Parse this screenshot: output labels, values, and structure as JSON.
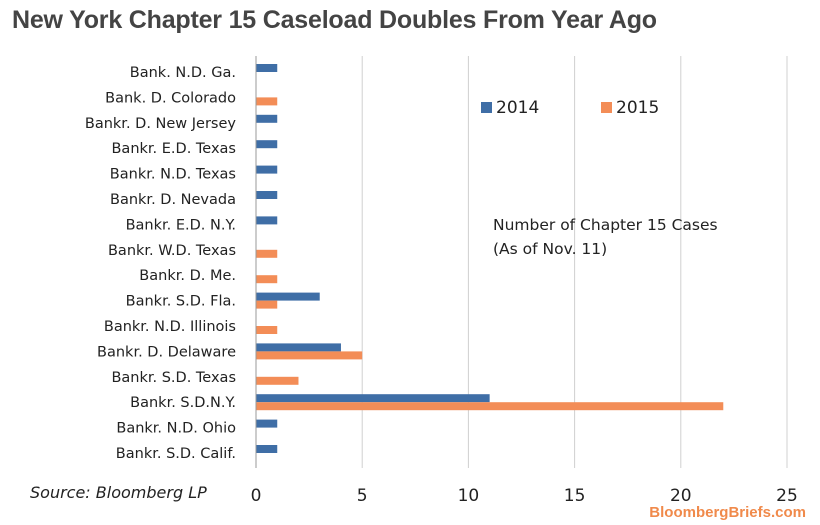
{
  "header": {
    "title": "New York Chapter 15 Caseload Doubles From Year Ago"
  },
  "footer": {
    "source": "Source: Bloomberg LP",
    "brand": "BloombergBriefs.com"
  },
  "chart_data": {
    "type": "bar",
    "orientation": "horizontal",
    "title": "New York Chapter 15 Caseload Doubles From Year Ago",
    "categories": [
      "Bank. N.D. Ga.",
      "Bank. D. Colorado",
      "Bankr. D. New Jersey",
      "Bankr. E.D. Texas",
      "Bankr. N.D. Texas",
      "Bankr. D. Nevada",
      "Bankr. E.D. N.Y.",
      "Bankr. W.D. Texas",
      "Bankr. D. Me.",
      "Bankr. S.D. Fla.",
      "Bankr. N.D. Illinois",
      "Bankr. D. Delaware",
      "Bankr. S.D. Texas",
      "Bankr. S.D.N.Y.",
      "Bankr. N.D. Ohio",
      "Bankr. S.D. Calif."
    ],
    "series": [
      {
        "name": "2014",
        "color": "#3f6ea6",
        "values": [
          1,
          0,
          1,
          1,
          1,
          1,
          1,
          0,
          0,
          3,
          0,
          4,
          0,
          11,
          1,
          1
        ]
      },
      {
        "name": "2015",
        "color": "#f38d57",
        "values": [
          0,
          1,
          0,
          0,
          0,
          0,
          0,
          1,
          1,
          1,
          1,
          5,
          2,
          22,
          0,
          0
        ]
      }
    ],
    "xlim": [
      0,
      25
    ],
    "xticks": [
      "0",
      "5",
      "10",
      "15",
      "20",
      "25"
    ],
    "grid": "vertical",
    "legend_position": "top-right",
    "annotation": [
      "Number of Chapter 15 Cases",
      "(As of Nov. 11)"
    ]
  }
}
